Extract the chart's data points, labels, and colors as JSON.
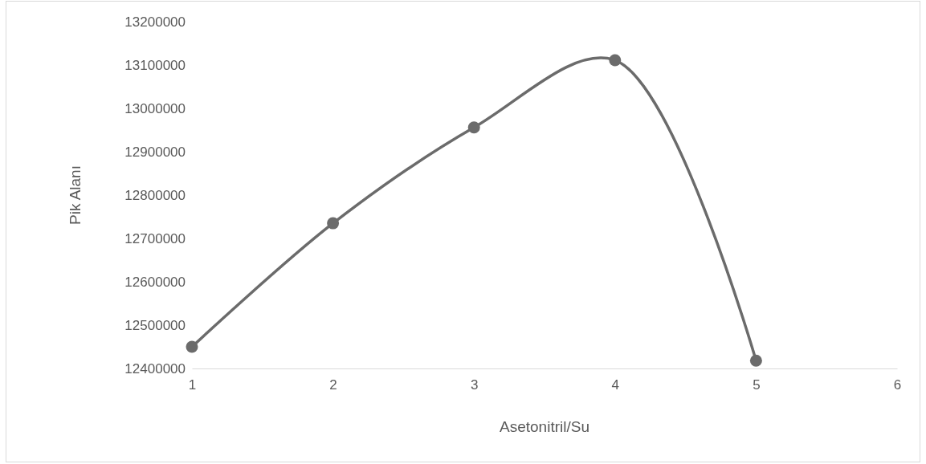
{
  "chart_data": {
    "type": "line",
    "xlabel": "Asetonitril/Su",
    "ylabel": "Pik Alanı",
    "x": [
      1,
      2,
      3,
      4,
      5
    ],
    "series": [
      {
        "color": "#6b6b6b",
        "values": [
          12450000,
          12735000,
          12956000,
          13111000,
          12418000
        ]
      }
    ],
    "xlim": [
      1,
      6
    ],
    "xticks": [
      1,
      2,
      3,
      4,
      5,
      6
    ],
    "ylim": [
      12400000,
      13200000
    ],
    "yticks": [
      12400000,
      12500000,
      12600000,
      12700000,
      12800000,
      12900000,
      13000000,
      13100000,
      13200000
    ],
    "marker": "circle",
    "line_style": "solid",
    "grid": false
  }
}
